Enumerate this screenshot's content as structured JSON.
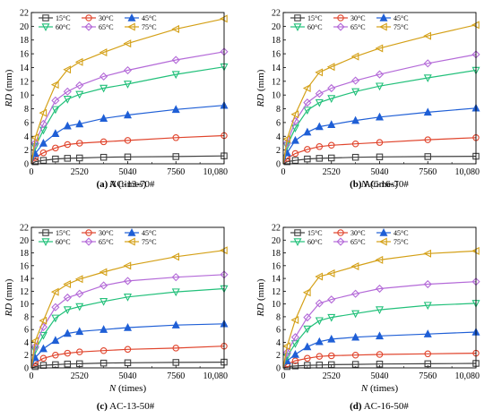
{
  "chart_data": [
    {
      "type": "line",
      "caption_bold": "(a)",
      "caption_rest": " AC-13-70#",
      "xlabel_var": "N",
      "xlabel_unit": " (times)",
      "ylabel_var": "RD",
      "ylabel_unit": " (mm)",
      "xticks": [
        "0",
        "2520",
        "5040",
        "7560",
        "10,080"
      ],
      "xlim": [
        0,
        10080
      ],
      "yticks": [
        "0",
        "2",
        "4",
        "6",
        "8",
        "10",
        "12",
        "14",
        "16",
        "18",
        "20",
        "22"
      ],
      "ylim": [
        0,
        22
      ],
      "legend_position": "top",
      "x": [
        0,
        200,
        630,
        1260,
        1890,
        2520,
        3780,
        5040,
        7560,
        10080
      ],
      "series": [
        {
          "name": "15°C",
          "color": "#404040",
          "marker": "square",
          "values": [
            0,
            0.3,
            0.5,
            0.7,
            0.8,
            0.85,
            0.95,
            1.0,
            1.05,
            1.15
          ]
        },
        {
          "name": "30°C",
          "color": "#e0442c",
          "marker": "circle",
          "values": [
            0,
            0.9,
            1.6,
            2.3,
            2.8,
            3.0,
            3.2,
            3.4,
            3.8,
            4.1
          ]
        },
        {
          "name": "45°C",
          "color": "#1f5fd6",
          "marker": "triangle",
          "values": [
            0,
            1.5,
            3.0,
            4.4,
            5.5,
            5.8,
            6.6,
            7.1,
            7.9,
            8.5
          ]
        },
        {
          "name": "60°C",
          "color": "#22c07a",
          "marker": "tri-down",
          "values": [
            0,
            2.5,
            4.9,
            7.9,
            9.4,
            10.1,
            11.0,
            11.6,
            13.0,
            14.1
          ]
        },
        {
          "name": "65°C",
          "color": "#b46ad8",
          "marker": "diamond",
          "values": [
            0,
            3.0,
            5.8,
            9.2,
            10.5,
            11.4,
            12.7,
            13.6,
            15.1,
            16.3
          ]
        },
        {
          "name": "75°C",
          "color": "#d4a017",
          "marker": "tri-left",
          "values": [
            0,
            3.8,
            7.4,
            11.5,
            13.7,
            14.8,
            16.2,
            17.5,
            19.6,
            21.1
          ]
        }
      ]
    },
    {
      "type": "line",
      "caption_bold": "(b)",
      "caption_rest": " AC-16-70#",
      "xlabel_var": "N",
      "xlabel_unit": " (times)",
      "ylabel_var": "RD",
      "ylabel_unit": " (mm)",
      "xticks": [
        "0",
        "2520",
        "5040",
        "7560",
        "10,080"
      ],
      "xlim": [
        0,
        10080
      ],
      "yticks": [
        "0",
        "2",
        "4",
        "6",
        "8",
        "10",
        "12",
        "14",
        "16",
        "18",
        "20",
        "22"
      ],
      "ylim": [
        0,
        22
      ],
      "legend_position": "top",
      "x": [
        0,
        200,
        630,
        1260,
        1890,
        2520,
        3780,
        5040,
        7560,
        10080
      ],
      "series": [
        {
          "name": "15°C",
          "color": "#404040",
          "marker": "square",
          "values": [
            0,
            0.3,
            0.5,
            0.7,
            0.8,
            0.85,
            0.95,
            1.0,
            1.05,
            1.1
          ]
        },
        {
          "name": "30°C",
          "color": "#e0442c",
          "marker": "circle",
          "values": [
            0,
            0.8,
            1.5,
            2.1,
            2.5,
            2.7,
            2.9,
            3.1,
            3.5,
            3.8
          ]
        },
        {
          "name": "45°C",
          "color": "#1f5fd6",
          "marker": "triangle",
          "values": [
            0,
            1.6,
            3.4,
            4.6,
            5.4,
            5.7,
            6.3,
            6.8,
            7.5,
            8.1
          ]
        },
        {
          "name": "60°C",
          "color": "#22c07a",
          "marker": "tri-down",
          "values": [
            0,
            2.6,
            5.2,
            7.8,
            8.9,
            9.5,
            10.5,
            11.3,
            12.5,
            13.6
          ]
        },
        {
          "name": "65°C",
          "color": "#b46ad8",
          "marker": "diamond",
          "values": [
            0,
            3.0,
            6.2,
            8.9,
            10.2,
            11.0,
            12.1,
            13.0,
            14.6,
            15.9
          ]
        },
        {
          "name": "75°C",
          "color": "#d4a017",
          "marker": "tri-left",
          "values": [
            0,
            3.6,
            7.2,
            11.0,
            13.3,
            14.1,
            15.6,
            16.8,
            18.6,
            20.2
          ]
        }
      ]
    },
    {
      "type": "line",
      "caption_bold": "(c)",
      "caption_rest": " AC-13-50#",
      "xlabel_var": "N",
      "xlabel_unit": " (times)",
      "ylabel_var": "RD",
      "ylabel_unit": " (mm)",
      "xticks": [
        "0",
        "2520",
        "5040",
        "7560",
        "10,080"
      ],
      "xlim": [
        0,
        10080
      ],
      "yticks": [
        "0",
        "2",
        "4",
        "6",
        "8",
        "10",
        "12",
        "14",
        "16",
        "18",
        "20",
        "22"
      ],
      "ylim": [
        0,
        22
      ],
      "legend_position": "top",
      "x": [
        0,
        200,
        630,
        1260,
        1890,
        2520,
        3780,
        5040,
        7560,
        10080
      ],
      "series": [
        {
          "name": "15°C",
          "color": "#404040",
          "marker": "square",
          "values": [
            0,
            0.2,
            0.4,
            0.5,
            0.6,
            0.65,
            0.75,
            0.8,
            0.85,
            0.9
          ]
        },
        {
          "name": "30°C",
          "color": "#e0442c",
          "marker": "circle",
          "values": [
            0,
            0.8,
            1.5,
            2.0,
            2.3,
            2.5,
            2.7,
            2.9,
            3.1,
            3.4
          ]
        },
        {
          "name": "45°C",
          "color": "#1f5fd6",
          "marker": "triangle",
          "values": [
            0,
            1.6,
            3.0,
            4.3,
            5.4,
            5.7,
            6.0,
            6.3,
            6.7,
            6.9
          ]
        },
        {
          "name": "60°C",
          "color": "#22c07a",
          "marker": "tri-down",
          "values": [
            0,
            2.8,
            5.1,
            7.8,
            9.1,
            9.6,
            10.4,
            11.1,
            11.9,
            12.4
          ]
        },
        {
          "name": "65°C",
          "color": "#b46ad8",
          "marker": "diamond",
          "values": [
            0,
            3.3,
            6.4,
            9.5,
            11.0,
            11.6,
            12.9,
            13.6,
            14.2,
            14.6
          ]
        },
        {
          "name": "75°C",
          "color": "#d4a017",
          "marker": "tri-left",
          "values": [
            0,
            4.2,
            7.4,
            11.9,
            13.1,
            13.9,
            15.0,
            16.0,
            17.4,
            18.4
          ]
        }
      ]
    },
    {
      "type": "line",
      "caption_bold": "(d)",
      "caption_rest": " AC-16-50#",
      "xlabel_var": "N",
      "xlabel_unit": " (times)",
      "ylabel_var": "RD",
      "ylabel_unit": " (mm)",
      "xticks": [
        "0",
        "2520",
        "5040",
        "7560",
        "10,080"
      ],
      "xlim": [
        0,
        10080
      ],
      "yticks": [
        "0",
        "2",
        "4",
        "6",
        "8",
        "10",
        "12",
        "14",
        "16",
        "18",
        "20",
        "22"
      ],
      "ylim": [
        0,
        22
      ],
      "legend_position": "top",
      "x": [
        0,
        200,
        630,
        1260,
        1890,
        2520,
        3780,
        5040,
        7560,
        10080
      ],
      "series": [
        {
          "name": "15°C",
          "color": "#404040",
          "marker": "square",
          "values": [
            0,
            0.2,
            0.3,
            0.4,
            0.45,
            0.5,
            0.55,
            0.6,
            0.65,
            0.7
          ]
        },
        {
          "name": "30°C",
          "color": "#e0442c",
          "marker": "circle",
          "values": [
            0,
            0.6,
            1.1,
            1.5,
            1.8,
            1.9,
            2.0,
            2.1,
            2.2,
            2.3
          ]
        },
        {
          "name": "45°C",
          "color": "#1f5fd6",
          "marker": "triangle",
          "values": [
            0,
            1.1,
            2.1,
            3.3,
            4.1,
            4.5,
            4.8,
            5.0,
            5.3,
            5.6
          ]
        },
        {
          "name": "60°C",
          "color": "#22c07a",
          "marker": "tri-down",
          "values": [
            0,
            1.8,
            3.8,
            6.1,
            7.4,
            7.9,
            8.5,
            9.1,
            9.8,
            10.1
          ]
        },
        {
          "name": "65°C",
          "color": "#b46ad8",
          "marker": "diamond",
          "values": [
            0,
            2.4,
            4.8,
            7.9,
            10.1,
            10.7,
            11.6,
            12.4,
            13.1,
            13.5
          ]
        },
        {
          "name": "75°C",
          "color": "#d4a017",
          "marker": "tri-left",
          "values": [
            0,
            3.4,
            7.5,
            11.8,
            14.3,
            14.8,
            15.9,
            16.9,
            17.9,
            18.3
          ]
        }
      ]
    }
  ]
}
